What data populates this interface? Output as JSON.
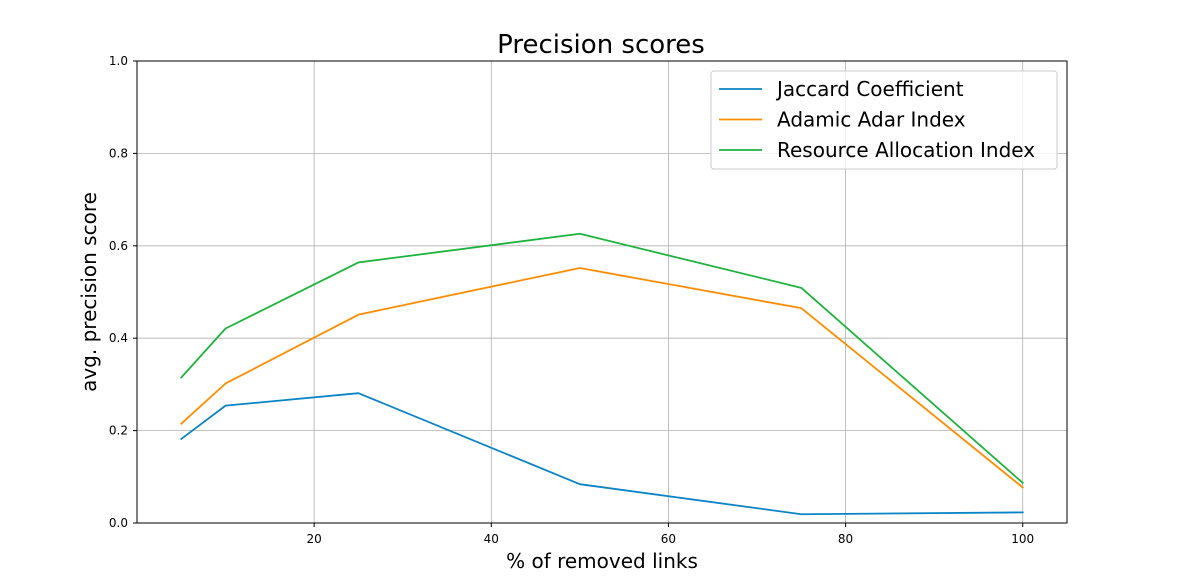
{
  "chart_data": {
    "type": "line",
    "title": "Precision scores",
    "xlabel": "% of removed links",
    "ylabel": "avg. precision score",
    "x": [
      5,
      10,
      25,
      50,
      75,
      100
    ],
    "xlim": [
      0,
      105
    ],
    "ylim": [
      0,
      1.0
    ],
    "xticks": [
      20,
      40,
      60,
      80,
      100
    ],
    "yticks": [
      0.0,
      0.2,
      0.4,
      0.6,
      0.8,
      1.0
    ],
    "xtick_labels": [
      "20",
      "40",
      "60",
      "80",
      "100"
    ],
    "ytick_labels": [
      "0.0",
      "0.2",
      "0.4",
      "0.6",
      "0.8",
      "1.0"
    ],
    "grid": true,
    "legend_position": "top-right",
    "series": [
      {
        "name": "Jaccard Coefficient",
        "color": "#0b84c6",
        "values": [
          0.182,
          0.254,
          0.281,
          0.084,
          0.019,
          0.023
        ]
      },
      {
        "name": "Adamic Adar Index",
        "color": "#ff8c00",
        "values": [
          0.215,
          0.302,
          0.451,
          0.552,
          0.465,
          0.077
        ]
      },
      {
        "name": "Resource Allocation Index",
        "color": "#1db33e",
        "values": [
          0.315,
          0.421,
          0.564,
          0.626,
          0.509,
          0.087
        ]
      }
    ]
  }
}
